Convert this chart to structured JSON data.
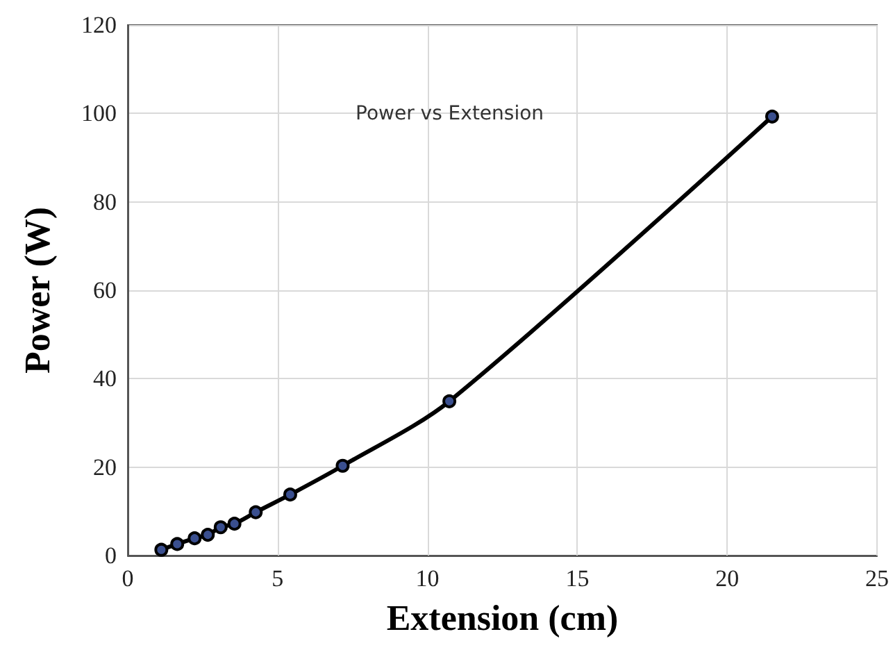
{
  "chart_data": {
    "type": "line",
    "title": "Power vs Extension",
    "xlabel": "Extension (cm)",
    "ylabel": "Power (W)",
    "x": [
      1.12,
      1.65,
      2.23,
      2.67,
      3.1,
      3.56,
      4.27,
      5.42,
      7.17,
      10.73,
      21.5
    ],
    "series": [
      {
        "color": "#000000",
        "values": [
          1.3,
          2.6,
          3.9,
          4.7,
          6.4,
          7.2,
          9.8,
          13.8,
          20.3,
          34.9,
          99.3
        ]
      }
    ],
    "xlim": [
      0,
      25
    ],
    "xticks": [
      0,
      5,
      10,
      15,
      20,
      25
    ],
    "ylim": [
      0,
      120
    ],
    "yticks": [
      0,
      20,
      40,
      60,
      80,
      100,
      120
    ],
    "grid": true,
    "marker": "circle",
    "line_style": "solid"
  }
}
